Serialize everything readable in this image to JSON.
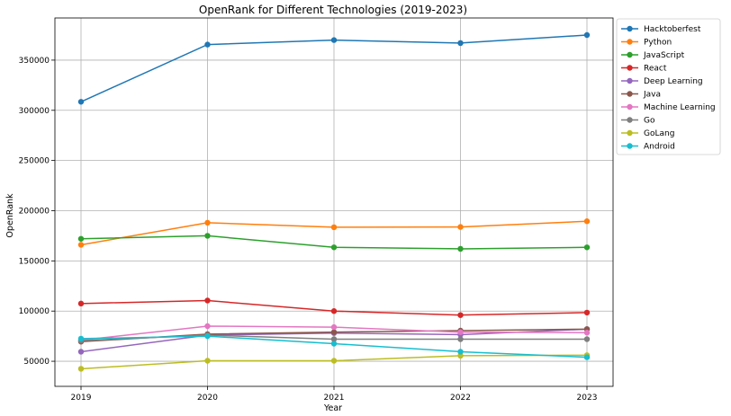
{
  "chart_data": {
    "type": "line",
    "title": "OpenRank for Different Technologies (2019-2023)",
    "xlabel": "Year",
    "ylabel": "OpenRank",
    "x": [
      "2019",
      "2020",
      "2021",
      "2022",
      "2023"
    ],
    "ylim": [
      25000,
      392000
    ],
    "yticks": [
      50000,
      100000,
      150000,
      200000,
      250000,
      300000,
      350000
    ],
    "ytick_labels": [
      "50000",
      "100000",
      "150000",
      "200000",
      "250000",
      "300000",
      "350000"
    ],
    "grid": true,
    "legend_position": "outside-right",
    "series": [
      {
        "name": "Hacktoberfest",
        "color": "#1f77b4",
        "values": [
          308500,
          365500,
          370000,
          367000,
          375000
        ]
      },
      {
        "name": "Python",
        "color": "#ff7f0e",
        "values": [
          166000,
          188000,
          183500,
          183800,
          189500
        ]
      },
      {
        "name": "JavaScript",
        "color": "#2ca02c",
        "values": [
          172000,
          175000,
          163500,
          162000,
          163500
        ]
      },
      {
        "name": "React",
        "color": "#d62728",
        "values": [
          107500,
          110500,
          100000,
          96000,
          98500
        ]
      },
      {
        "name": "Deep Learning",
        "color": "#9467bd",
        "values": [
          59500,
          76000,
          78000,
          76500,
          82000
        ]
      },
      {
        "name": "Java",
        "color": "#8c564b",
        "values": [
          69500,
          77000,
          79000,
          80500,
          82000
        ]
      },
      {
        "name": "Machine Learning",
        "color": "#e377c2",
        "values": [
          71000,
          85000,
          84000,
          79000,
          78500
        ]
      },
      {
        "name": "Go",
        "color": "#7f7f7f",
        "values": [
          70500,
          76000,
          72000,
          72000,
          72000
        ]
      },
      {
        "name": "GoLang",
        "color": "#bcbd22",
        "values": [
          42500,
          50500,
          50500,
          55500,
          56000
        ]
      },
      {
        "name": "Android",
        "color": "#17becf",
        "values": [
          72500,
          75000,
          67500,
          59500,
          54000
        ]
      }
    ]
  }
}
